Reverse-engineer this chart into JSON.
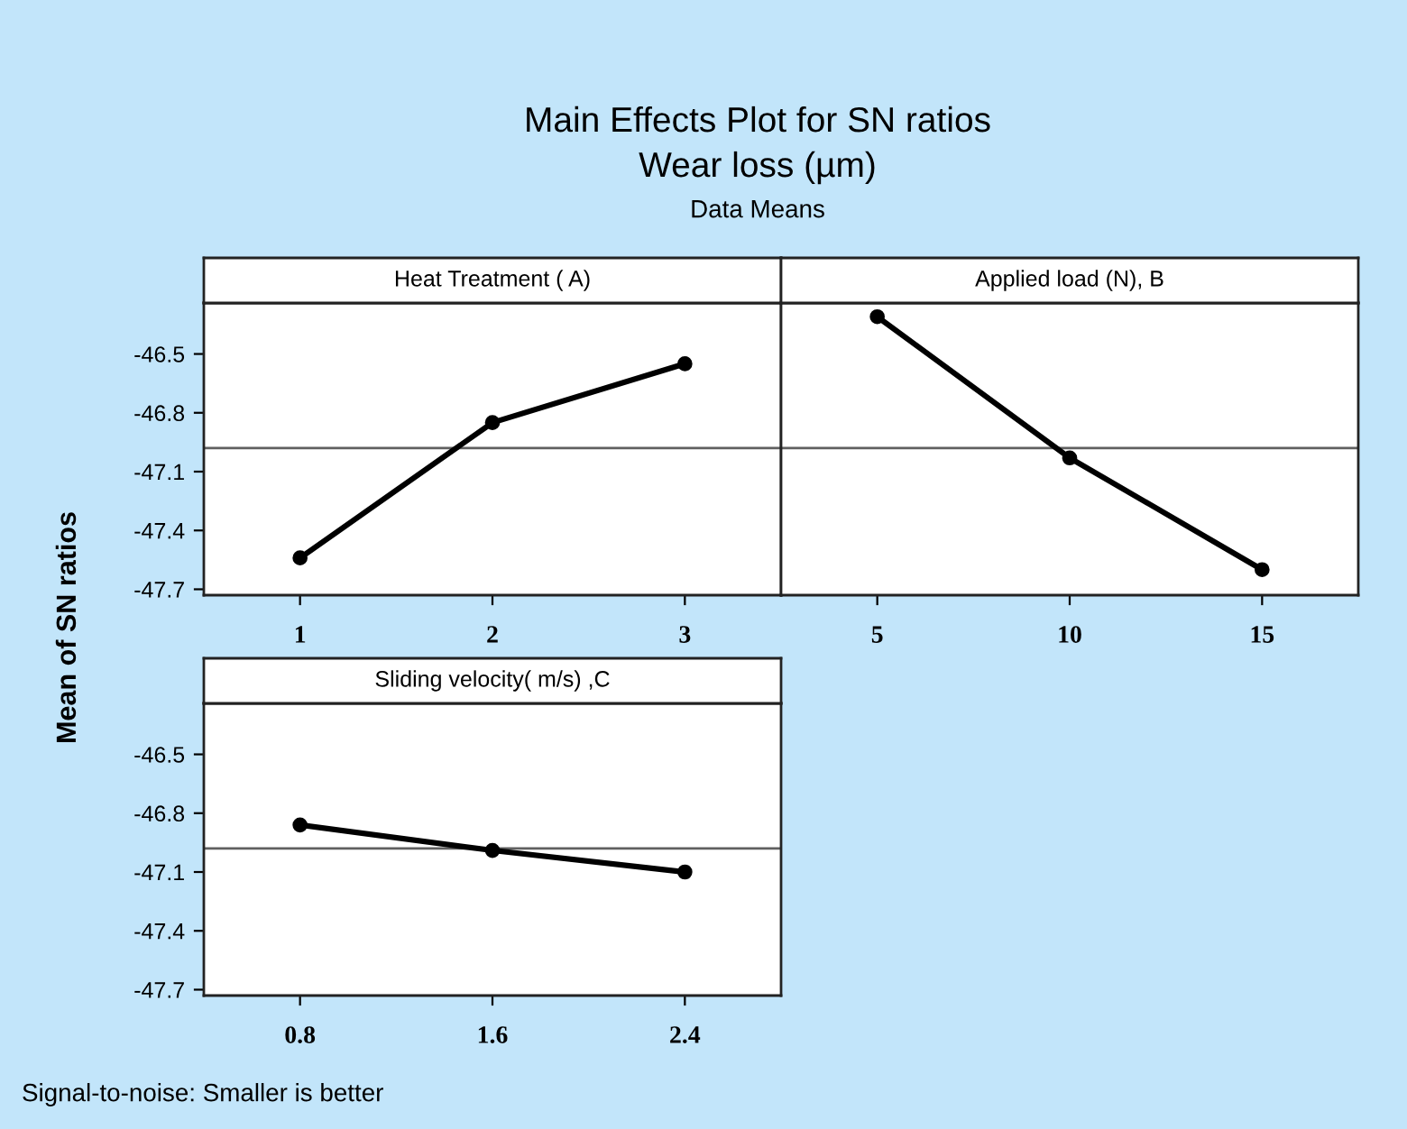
{
  "chart_data": [
    {
      "type": "line",
      "title": "Heat Treatment ( A)",
      "ylabel": "Mean of SN ratios",
      "annotations": [
        "Main Effects Plot for SN ratios",
        "Wear loss (µm)",
        "Data Means"
      ],
      "x": [
        1,
        2,
        3
      ],
      "xlim": [
        0.5,
        3.5
      ],
      "xticks": [
        1,
        2,
        3
      ],
      "ylim": [
        -47.73,
        -46.24
      ],
      "yticks": [
        -46.5,
        -46.8,
        -47.1,
        -47.4,
        -47.7
      ],
      "marker": "circle",
      "line_style": "solid",
      "grid": false,
      "legend": false,
      "series": [
        {
          "color": "#000000",
          "values": [
            -47.54,
            -46.85,
            -46.55
          ]
        }
      ],
      "ref_lines": [
        {
          "axis": "y",
          "value": -46.98,
          "color": "#606060"
        }
      ]
    },
    {
      "type": "line",
      "title": "Applied load (N), B",
      "tick_labels": "x",
      "x": [
        5,
        10,
        15
      ],
      "xlim": [
        2.5,
        17.5
      ],
      "xticks": [
        5,
        10,
        15
      ],
      "ylim": [
        -47.73,
        -46.24
      ],
      "marker": "circle",
      "line_style": "solid",
      "grid": false,
      "legend": false,
      "series": [
        {
          "color": "#000000",
          "values": [
            -46.31,
            -47.03,
            -47.6
          ]
        }
      ],
      "ref_lines": [
        {
          "axis": "y",
          "value": -46.98,
          "color": "#606060"
        }
      ]
    },
    {
      "type": "line",
      "title": "Sliding velocity( m/s) ,C",
      "annotations": [
        "Signal-to-noise: Smaller is better"
      ],
      "x": [
        0.8,
        1.6,
        2.4
      ],
      "xlim": [
        0.4,
        2.8
      ],
      "xticks": [
        0.8,
        1.6,
        2.4
      ],
      "ylim": [
        -47.73,
        -46.24
      ],
      "yticks": [
        -46.5,
        -46.8,
        -47.1,
        -47.4,
        -47.7
      ],
      "marker": "circle",
      "line_style": "solid",
      "grid": false,
      "legend": false,
      "series": [
        {
          "color": "#000000",
          "values": [
            -46.86,
            -46.99,
            -47.1
          ]
        }
      ],
      "ref_lines": [
        {
          "axis": "y",
          "value": -46.98,
          "color": "#606060"
        }
      ]
    }
  ]
}
